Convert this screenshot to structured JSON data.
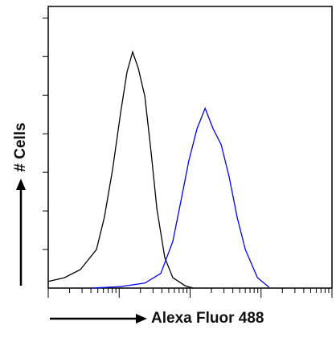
{
  "chart_data": {
    "type": "line",
    "x_label": "Alexa Fluor 488",
    "y_label": "# Cells",
    "xscale": "log",
    "xlim": [
      1,
      10000
    ],
    "ylim": [
      0,
      7.3
    ],
    "xticks": [
      1,
      2,
      3,
      4,
      5,
      6,
      7,
      8,
      9,
      10,
      20,
      30,
      40,
      50,
      60,
      70,
      80,
      90,
      100,
      200,
      300,
      400,
      500,
      600,
      700,
      800,
      900,
      1000,
      2000,
      3000,
      4000,
      5000,
      6000,
      7000,
      8000,
      9000,
      10000
    ],
    "yticks": [
      1,
      2,
      3,
      4,
      5,
      6,
      7
    ],
    "series": [
      {
        "color": "#000000",
        "x": [
          1,
          1.69,
          2.84,
          4.79,
          6.2,
          8.1,
          10.5,
          12.9,
          15.5,
          18.6,
          23,
          28.3,
          34,
          44,
          57,
          85,
          110
        ],
        "values": [
          0.17,
          0.27,
          0.48,
          1.0,
          1.84,
          3.09,
          4.55,
          5.6,
          6.12,
          5.7,
          4.97,
          3.5,
          2.05,
          0.79,
          0.27,
          0.06,
          0
        ]
      },
      {
        "color": "#0000ee",
        "x": [
          4.2,
          10.5,
          23,
          38.6,
          57,
          74,
          96,
          125,
          163,
          211,
          274,
          355,
          460,
          600,
          890,
          1300
        ],
        "values": [
          0,
          0.04,
          0.13,
          0.38,
          1.21,
          2.25,
          3.3,
          4.13,
          4.66,
          4.13,
          3.72,
          2.88,
          1.84,
          1.0,
          0.27,
          0.02
        ]
      }
    ]
  }
}
